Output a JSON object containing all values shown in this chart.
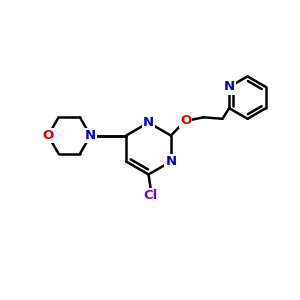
{
  "bg_color": "#ffffff",
  "atom_colors": {
    "N": "#0000cc",
    "O": "#dd0000",
    "Cl": "#7f00cc"
  },
  "bond_color": "#000000",
  "bond_width": 1.8,
  "figsize": [
    3.0,
    3.0
  ],
  "dpi": 100,
  "xlim": [
    0,
    10
  ],
  "ylim": [
    0,
    10
  ]
}
